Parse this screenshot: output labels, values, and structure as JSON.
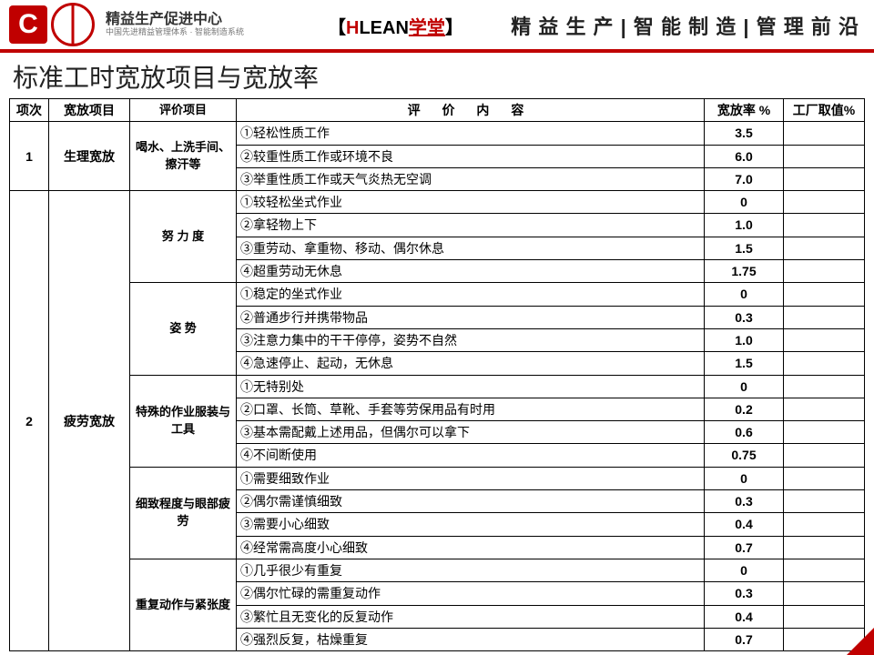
{
  "header": {
    "logo_main": "精益生产促进中心",
    "logo_sub": "中国先进精益管理体系 · 智能制造系统",
    "hlean_prefix": "【",
    "hlean_h": "H",
    "hlean_lean": "LEAN",
    "hlean_xuetang": "学堂",
    "hlean_suffix": "】",
    "tagline": "精 益 生 产 | 智 能 制 造 | 管 理 前 沿"
  },
  "title": "标准工时宽放项目与宽放率",
  "columns": {
    "c1": "项次",
    "c2": "宽放项目",
    "c3": "评价项目",
    "c4": "评  价  内  容",
    "c5": "宽放率 %",
    "c6": "工厂取值%"
  },
  "groups": [
    {
      "idx": "1",
      "project": "生理宽放",
      "sections": [
        {
          "eval": "喝水、上洗手间、擦汗等",
          "rows": [
            {
              "content": "①轻松性质工作",
              "rate": "3.5"
            },
            {
              "content": "②较重性质工作或环境不良",
              "rate": "6.0"
            },
            {
              "content": "③举重性质工作或天气炎热无空调",
              "rate": "7.0"
            }
          ]
        }
      ]
    },
    {
      "idx": "2",
      "project": "疲劳宽放",
      "sections": [
        {
          "eval": "努  力  度",
          "rows": [
            {
              "content": "①较轻松坐式作业",
              "rate": "0"
            },
            {
              "content": "②拿轻物上下",
              "rate": "1.0"
            },
            {
              "content": "③重劳动、拿重物、移动、偶尔休息",
              "rate": "1.5"
            },
            {
              "content": "④超重劳动无休息",
              "rate": "1.75"
            }
          ]
        },
        {
          "eval": "姿      势",
          "rows": [
            {
              "content": "①稳定的坐式作业",
              "rate": "0"
            },
            {
              "content": "②普通步行并携带物品",
              "rate": "0.3"
            },
            {
              "content": "③注意力集中的干干停停，姿势不自然",
              "rate": "1.0"
            },
            {
              "content": "④急速停止、起动，无休息",
              "rate": "1.5"
            }
          ]
        },
        {
          "eval": "特殊的作业服装与工具",
          "rows": [
            {
              "content": "①无特别处",
              "rate": "0"
            },
            {
              "content": "②口罩、长筒、草靴、手套等劳保用品有时用",
              "rate": "0.2"
            },
            {
              "content": "③基本需配戴上述用品，但偶尔可以拿下",
              "rate": "0.6"
            },
            {
              "content": "④不间断使用",
              "rate": "0.75"
            }
          ]
        },
        {
          "eval": "细致程度与眼部疲劳",
          "rows": [
            {
              "content": "①需要细致作业",
              "rate": "0"
            },
            {
              "content": "②偶尔需谨慎细致",
              "rate": "0.3"
            },
            {
              "content": "③需要小心细致",
              "rate": "0.4"
            },
            {
              "content": "④经常需高度小心细致",
              "rate": "0.7"
            }
          ]
        },
        {
          "eval": "重复动作与紧张度",
          "rows": [
            {
              "content": "①几乎很少有重复",
              "rate": "0"
            },
            {
              "content": "②偶尔忙碌的需重复动作",
              "rate": "0.3"
            },
            {
              "content": "③繁忙且无变化的反复动作",
              "rate": "0.4"
            },
            {
              "content": "④强烈反复，枯燥重复",
              "rate": "0.7"
            }
          ]
        }
      ]
    }
  ]
}
